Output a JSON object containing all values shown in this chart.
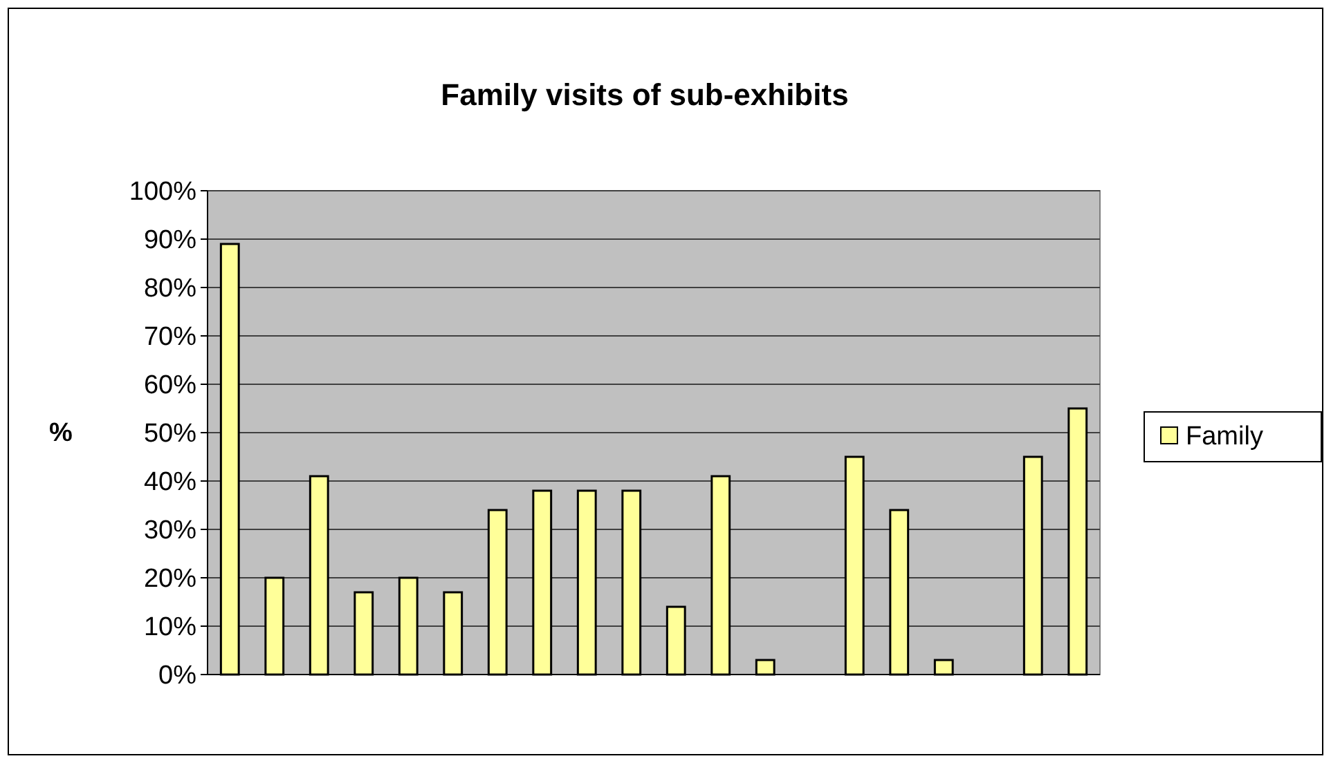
{
  "chart_data": {
    "type": "bar",
    "title": "Family visits of sub-exhibits",
    "ylabel": "%",
    "categories": [
      null,
      null,
      null,
      null,
      null,
      null,
      null,
      null,
      null,
      null,
      null,
      null,
      null,
      null,
      null,
      null,
      null,
      null,
      null,
      null
    ],
    "series": [
      {
        "name": "Family",
        "color": "#ffff99",
        "values": [
          89,
          20,
          41,
          17,
          20,
          17,
          34,
          38,
          38,
          38,
          14,
          41,
          3,
          0,
          45,
          34,
          3,
          0,
          45,
          55
        ]
      }
    ],
    "ylim": [
      0,
      100
    ],
    "yticks": [
      {
        "value": 0,
        "label": "0%"
      },
      {
        "value": 10,
        "label": "10%"
      },
      {
        "value": 20,
        "label": "20%"
      },
      {
        "value": 30,
        "label": "30%"
      },
      {
        "value": 40,
        "label": "40%"
      },
      {
        "value": 50,
        "label": "50%"
      },
      {
        "value": 60,
        "label": "60%"
      },
      {
        "value": 70,
        "label": "70%"
      },
      {
        "value": 80,
        "label": "80%"
      },
      {
        "value": 90,
        "label": "90%"
      },
      {
        "value": 100,
        "label": "100%"
      }
    ],
    "grid": "y",
    "legend": "right"
  }
}
